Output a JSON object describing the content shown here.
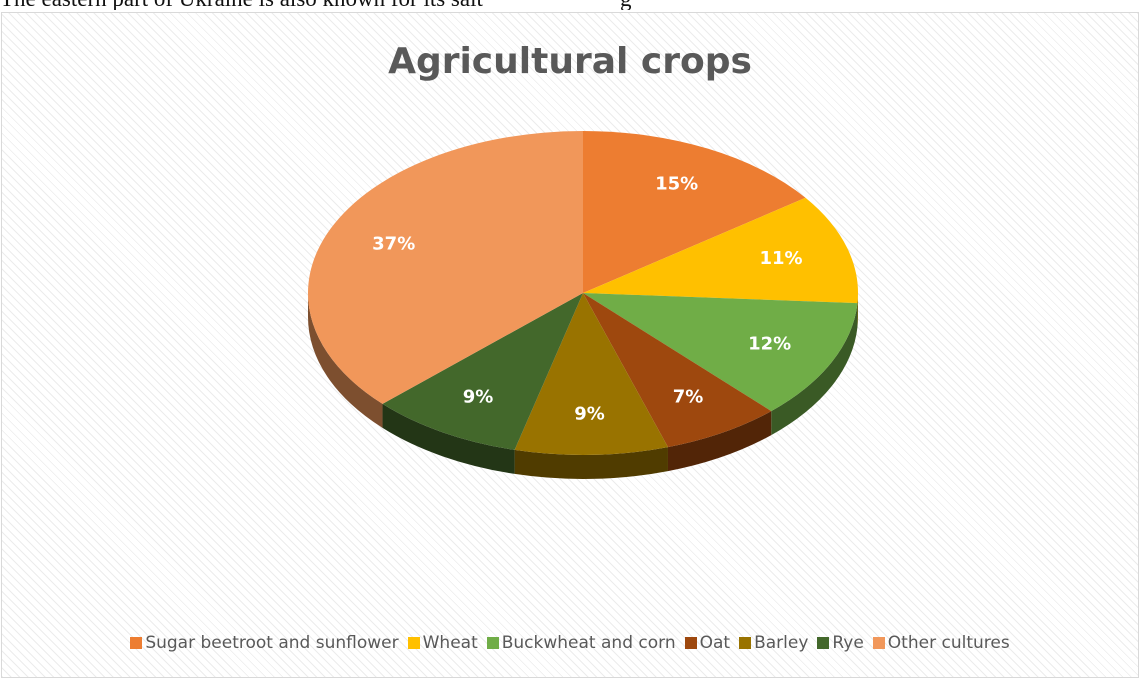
{
  "document": {
    "text_left": "The eastern part of Ukraine is also known for its salt",
    "text_right": "g"
  },
  "chart_data": {
    "type": "pie",
    "title": "Agricultural crops",
    "legend_position": "bottom",
    "three_d": true,
    "categories": [
      "Sugar beetroot and sunflower",
      "Wheat",
      "Buckwheat and corn",
      "Oat",
      "Barley",
      "Rye",
      "Other cultures"
    ],
    "values": [
      15,
      11,
      12,
      7,
      9,
      9,
      37
    ],
    "labels": [
      "15%",
      "11%",
      "12%",
      "7%",
      "9%",
      "9%",
      "37%"
    ],
    "colors": [
      "#ED7D31",
      "#FFC000",
      "#70AD47",
      "#9E480E",
      "#997300",
      "#43682B",
      "#F1975A"
    ]
  }
}
